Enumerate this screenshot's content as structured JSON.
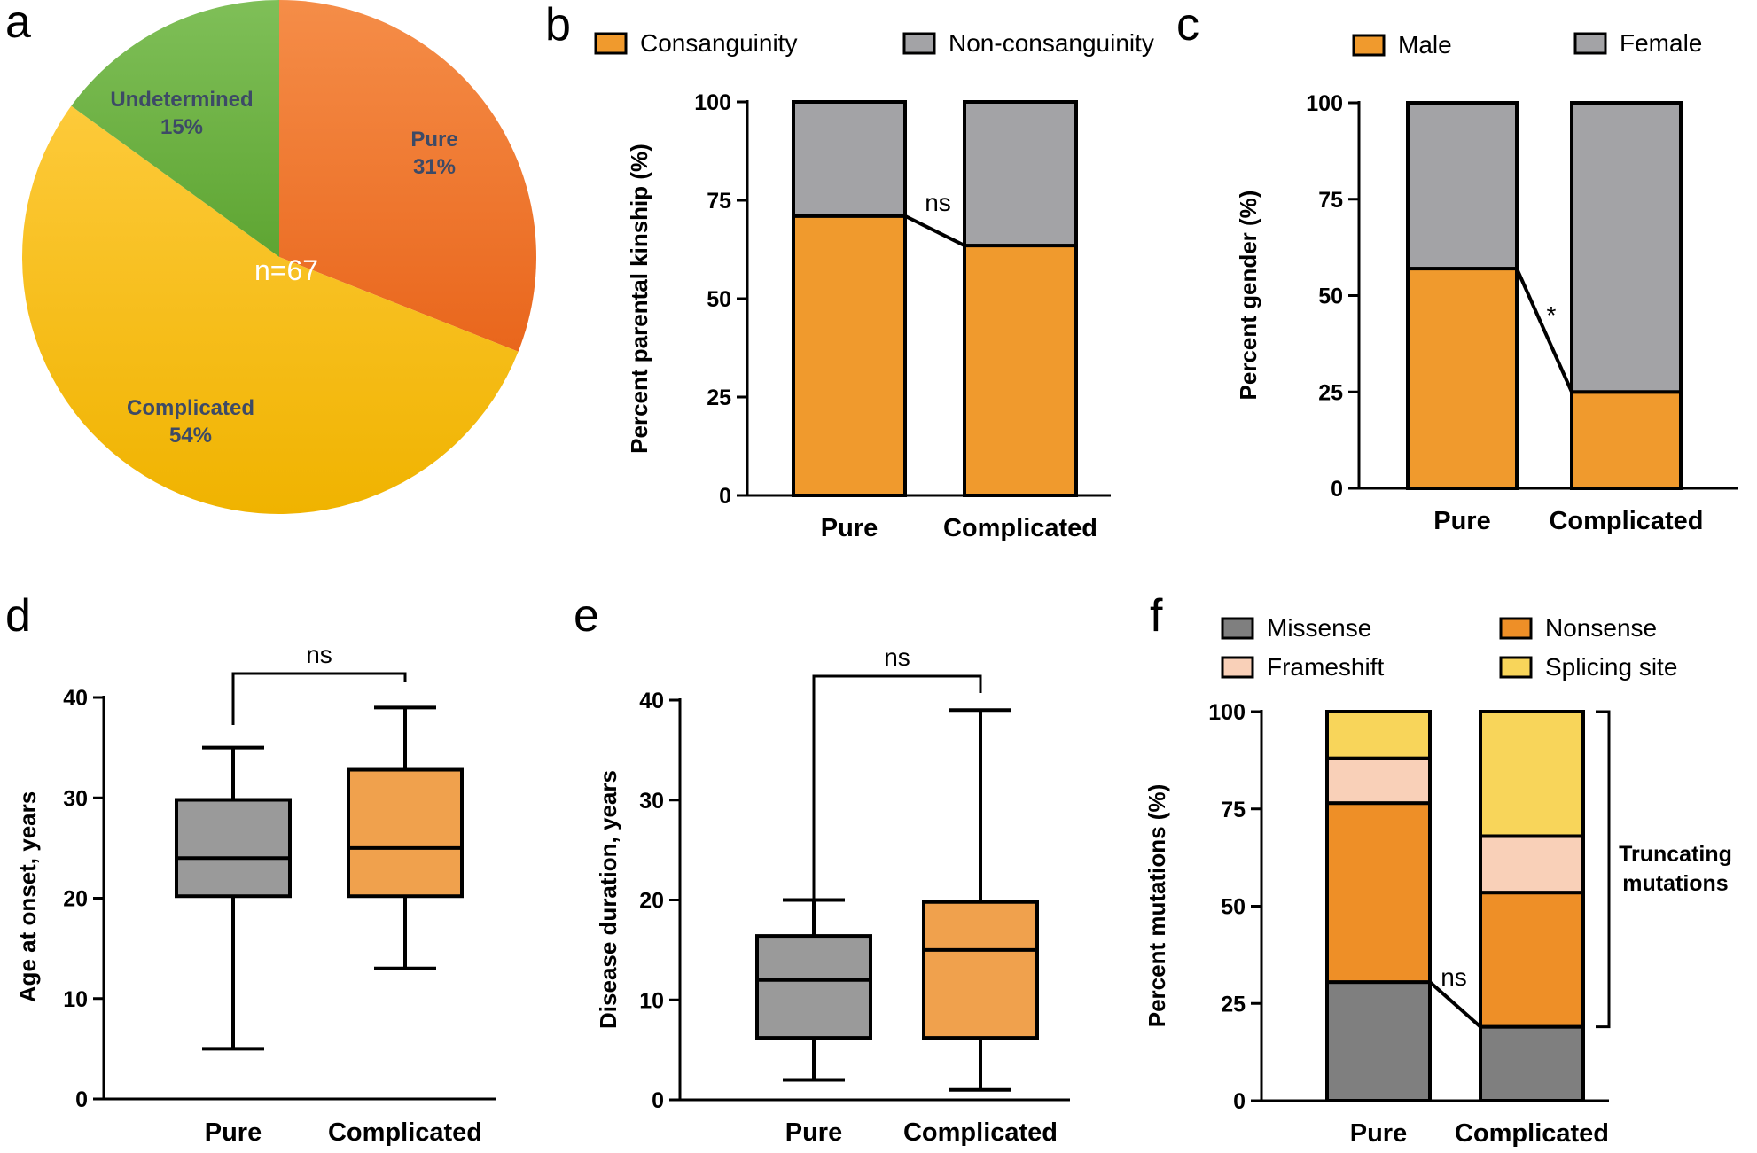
{
  "colors": {
    "orange": "#f09a2d",
    "gray": "#a3a3a6",
    "dark_gray": "#7f7f7f",
    "nonsense_orange": "#ee8f27",
    "peach": "#f9d0b8",
    "yellow": "#f8d55a",
    "box_gray": "#9a9a9a",
    "box_orange": "#f0a14d",
    "pie_pure": "#f07d32",
    "pie_complicated": "#fbc615",
    "pie_undetermined": "#73b445"
  },
  "chart_data": [
    {
      "panel": "a",
      "type": "pie",
      "center_label": "n=67",
      "slices": [
        {
          "name": "Pure",
          "value": 31,
          "pct_label": "31%"
        },
        {
          "name": "Complicated",
          "value": 54,
          "pct_label": "54%"
        },
        {
          "name": "Undetermined",
          "value": 15,
          "pct_label": "15%"
        }
      ]
    },
    {
      "panel": "b",
      "type": "bar",
      "stacked": true,
      "ylabel": "Percent parental kinship (%)",
      "ylim": [
        0,
        100
      ],
      "yticks": [
        "0",
        "25",
        "50",
        "75",
        "100"
      ],
      "categories": [
        "Pure",
        "Complicated"
      ],
      "legend": [
        "Consanguinity",
        "Non-consanguinity"
      ],
      "series": [
        {
          "name": "Consanguinity",
          "values": [
            71,
            63.5
          ]
        },
        {
          "name": "Non-consanguinity",
          "values": [
            29,
            36.5
          ]
        }
      ],
      "annotation": "ns"
    },
    {
      "panel": "c",
      "type": "bar",
      "stacked": true,
      "ylabel": "Percent gender (%)",
      "ylim": [
        0,
        100
      ],
      "yticks": [
        "0",
        "25",
        "50",
        "75",
        "100"
      ],
      "categories": [
        "Pure",
        "Complicated"
      ],
      "legend": [
        "Male",
        "Female"
      ],
      "series": [
        {
          "name": "Male",
          "values": [
            57,
            25
          ]
        },
        {
          "name": "Female",
          "values": [
            43,
            75
          ]
        }
      ],
      "annotation": "*"
    },
    {
      "panel": "d",
      "type": "box",
      "ylabel": "Age at onset, years",
      "ylim": [
        0,
        40
      ],
      "yticks": [
        "0",
        "10",
        "20",
        "30",
        "40"
      ],
      "categories": [
        "Pure",
        "Complicated"
      ],
      "boxes": [
        {
          "min": 5,
          "q1": 20.2,
          "median": 24,
          "q3": 29.8,
          "max": 35
        },
        {
          "min": 13,
          "q1": 20.2,
          "median": 25,
          "q3": 32.8,
          "max": 39
        }
      ],
      "annotation": "ns"
    },
    {
      "panel": "e",
      "type": "box",
      "ylabel": "Disease duration, years",
      "ylim": [
        0,
        40
      ],
      "yticks": [
        "0",
        "10",
        "20",
        "30",
        "40"
      ],
      "categories": [
        "Pure",
        "Complicated"
      ],
      "boxes": [
        {
          "min": 2,
          "q1": 6.2,
          "median": 12,
          "q3": 16.4,
          "max": 20
        },
        {
          "min": 1,
          "q1": 6.2,
          "median": 15,
          "q3": 19.8,
          "max": 39
        }
      ],
      "annotation": "ns"
    },
    {
      "panel": "f",
      "type": "bar",
      "stacked": true,
      "ylabel": "Percent mutations (%)",
      "ylim": [
        0,
        100
      ],
      "yticks": [
        "0",
        "25",
        "50",
        "75",
        "100"
      ],
      "categories": [
        "Pure",
        "Complicated"
      ],
      "legend": [
        "Missense",
        "Nonsense",
        "Frameshift",
        "Splicing site"
      ],
      "series": [
        {
          "name": "Missense",
          "values": [
            30.5,
            19
          ]
        },
        {
          "name": "Nonsense",
          "values": [
            46,
            34.5
          ]
        },
        {
          "name": "Frameshift",
          "values": [
            11.5,
            14.5
          ]
        },
        {
          "name": "Splicing site",
          "values": [
            12,
            32
          ]
        }
      ],
      "annotation": "ns",
      "side_label": [
        "Truncating",
        "mutations"
      ]
    }
  ]
}
